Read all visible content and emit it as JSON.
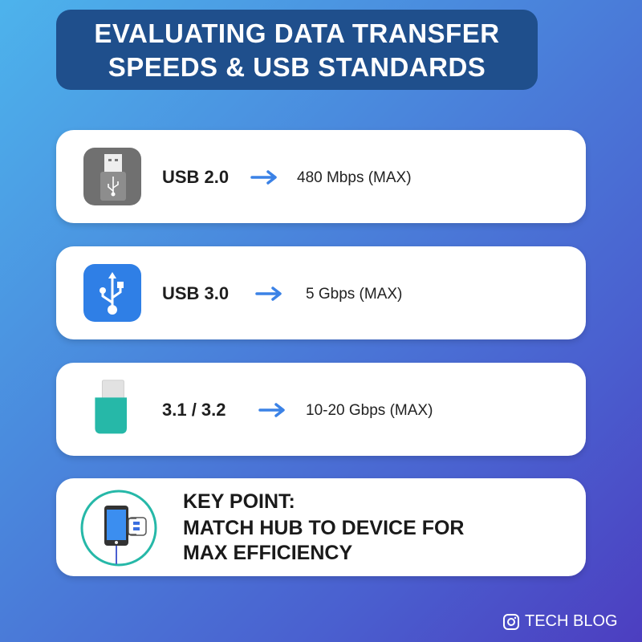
{
  "title": {
    "line1": "EVALUATING DATA TRANSFER",
    "line2": "SPEEDS & USB STANDARDS"
  },
  "cards": [
    {
      "standard": "USB 2.0",
      "speed": "480 Mbps (MAX)",
      "icon": "usb-stick-gray-icon"
    },
    {
      "standard": "USB 3.0",
      "speed": "5 Gbps (MAX)",
      "icon": "usb-symbol-blue-icon"
    },
    {
      "standard": "3.1 / 3.2",
      "speed": "10-20 Gbps (MAX)",
      "icon": "usb-c-connector-icon"
    }
  ],
  "key_point": {
    "heading": "KEY POINT:",
    "line1": "MATCH HUB TO DEVICE FOR",
    "line2": "MAX EFFICIENCY",
    "icon": "phone-hub-icon"
  },
  "footer": {
    "label": "TECH BLOG",
    "icon": "instagram-icon"
  },
  "colors": {
    "arrow": "#3b82e6",
    "banner": "#1f4f8c",
    "teal": "#26b8a8",
    "blue": "#2f7fe6",
    "gray": "#707070"
  }
}
